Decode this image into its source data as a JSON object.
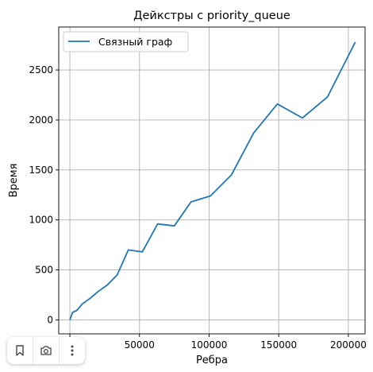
{
  "chart_data": {
    "type": "line",
    "title": "Дейкстры с priority_queue",
    "xlabel": "Ребра",
    "ylabel": "Время",
    "xlim": [
      -8000,
      212000
    ],
    "ylim": [
      -140,
      2930
    ],
    "xticks": [
      0,
      50000,
      100000,
      150000,
      200000
    ],
    "xtick_labels": [
      "0",
      "50000",
      "100000",
      "150000",
      "200000"
    ],
    "yticks": [
      0,
      500,
      1000,
      1500,
      2000,
      2500
    ],
    "ytick_labels": [
      "0",
      "500",
      "1000",
      "1500",
      "2000",
      "2500"
    ],
    "grid": true,
    "legend_placement": "upper-left",
    "series": [
      {
        "name": "Связный граф",
        "color": "#1f77b4",
        "x": [
          0,
          2000,
          5000,
          9000,
          15000,
          20000,
          27000,
          34000,
          42000,
          52000,
          63000,
          75000,
          87000,
          101000,
          116000,
          132000,
          149000,
          167000,
          185000,
          205000
        ],
        "y": [
          0,
          75,
          95,
          160,
          220,
          280,
          350,
          450,
          700,
          680,
          960,
          940,
          1180,
          1240,
          1450,
          1870,
          2160,
          2020,
          2230,
          2780
        ]
      }
    ]
  },
  "toolbar": {
    "bookmark_icon": "bookmark-icon",
    "lens_icon": "camera-lens-icon",
    "more_icon": "more-vertical-icon"
  }
}
